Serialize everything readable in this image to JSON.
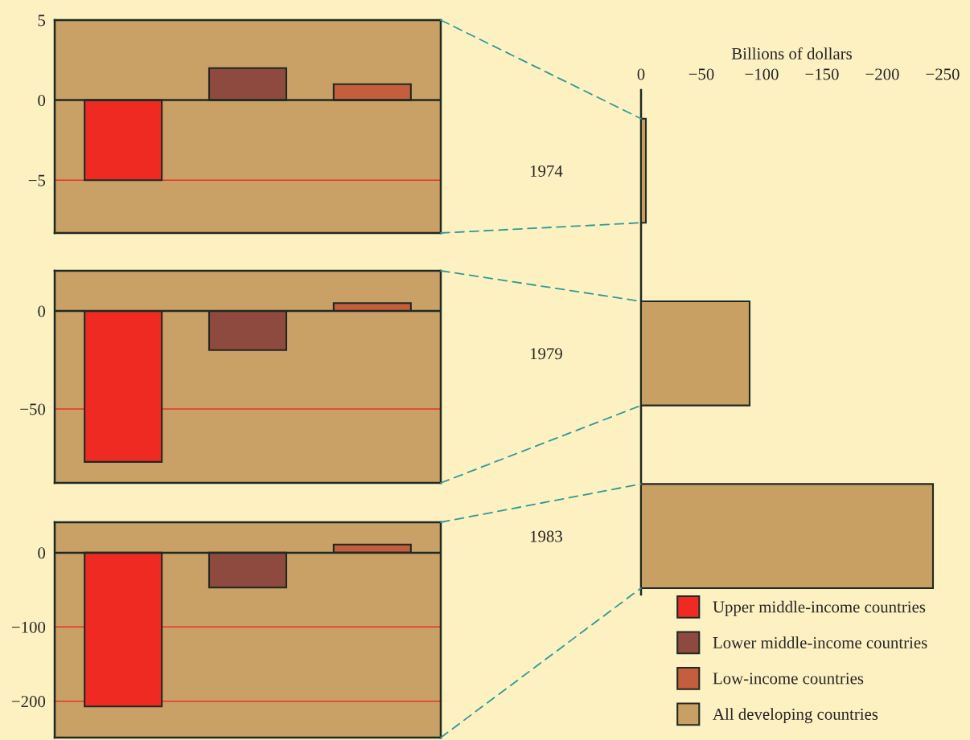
{
  "chart_data": [
    {
      "type": "bar",
      "categories": [
        null,
        null,
        null
      ],
      "ylim": [
        -8.3,
        5
      ],
      "yticks": [
        {
          "value": 5,
          "label": "5"
        },
        {
          "value": 0,
          "label": "0"
        },
        {
          "value": -5,
          "label": "−5"
        }
      ],
      "tick_labels": "y",
      "legend": "bottom right",
      "ref_lines": [
        {
          "axis": "y",
          "value": -5,
          "color": "#e8322a"
        },
        {
          "axis": "y",
          "value": 0,
          "color": "#1e2a22"
        }
      ],
      "series": [
        {
          "name": "Upper middle-income countries",
          "color": "#ee2a22",
          "values": [
            -5,
            null,
            null
          ]
        },
        {
          "name": "Lower middle-income countries",
          "color": "#8e4a3e",
          "values": [
            null,
            2,
            null
          ]
        },
        {
          "name": "Low-income countries",
          "color": "#c45e3c",
          "values": [
            null,
            null,
            1
          ]
        }
      ]
    },
    {
      "type": "bar",
      "categories": [
        null,
        null,
        null
      ],
      "ylim": [
        -87.7,
        20.5
      ],
      "yticks": [
        {
          "value": 0,
          "label": "0"
        },
        {
          "value": -50,
          "label": "−50"
        }
      ],
      "tick_labels": "y",
      "legend": "bottom right",
      "ref_lines": [
        {
          "axis": "y",
          "value": -50,
          "color": "#e8322a"
        },
        {
          "axis": "y",
          "value": 0,
          "color": "#1e2a22"
        }
      ],
      "series": [
        {
          "name": "Upper middle-income countries",
          "color": "#ee2a22",
          "values": [
            -77,
            null,
            null
          ]
        },
        {
          "name": "Lower middle-income countries",
          "color": "#8e4a3e",
          "values": [
            null,
            -20,
            null
          ]
        },
        {
          "name": "Low-income countries",
          "color": "#c45e3c",
          "values": [
            null,
            null,
            4
          ]
        }
      ]
    },
    {
      "type": "bar",
      "categories": [
        null,
        null,
        null
      ],
      "ylim": [
        -249,
        41
      ],
      "yticks": [
        {
          "value": 0,
          "label": "0"
        },
        {
          "value": -100,
          "label": "−100"
        },
        {
          "value": -200,
          "label": "−200"
        }
      ],
      "tick_labels": "y",
      "legend": "bottom right",
      "ref_lines": [
        {
          "axis": "y",
          "value": -100,
          "color": "#e8322a"
        },
        {
          "axis": "y",
          "value": -200,
          "color": "#e8322a"
        },
        {
          "axis": "y",
          "value": 0,
          "color": "#1e2a22"
        }
      ],
      "series": [
        {
          "name": "Upper middle-income countries",
          "color": "#ee2a22",
          "values": [
            -207,
            null,
            null
          ]
        },
        {
          "name": "Lower middle-income countries",
          "color": "#8e4a3e",
          "values": [
            null,
            -47,
            null
          ]
        },
        {
          "name": "Low-income countries",
          "color": "#c45e3c",
          "values": [
            null,
            null,
            11
          ]
        }
      ]
    },
    {
      "type": "bar",
      "orientation": "horizontal",
      "xlabel": "Billions of dollars",
      "categories": [
        "1974",
        "1979",
        "1983"
      ],
      "xlim": [
        0,
        -250
      ],
      "xticks": [
        0,
        {
          "value": -50,
          "label": "−50"
        },
        {
          "value": -100,
          "label": "−100"
        },
        {
          "value": -150,
          "label": "−150"
        },
        {
          "value": -200,
          "label": "−200"
        },
        {
          "value": -250,
          "label": "−250"
        }
      ],
      "legend": "bottom right",
      "series": [
        {
          "name": "All developing countries",
          "color": "#c9a064",
          "values": [
            -4,
            -90,
            -242
          ]
        }
      ]
    }
  ]
}
